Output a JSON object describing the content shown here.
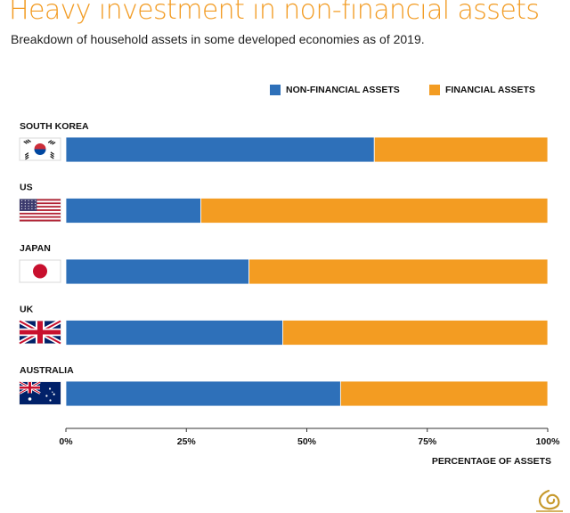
{
  "header": {
    "title": "Heavy investment in non-financial assets",
    "subtitle": "Breakdown of household assets in some developed economies as of 2019."
  },
  "colors": {
    "non_financial": "#2e70b9",
    "financial": "#f39c22"
  },
  "chart_data": {
    "type": "bar",
    "orientation": "horizontal",
    "stacked": true,
    "categories": [
      "SOUTH KOREA",
      "US",
      "JAPAN",
      "UK",
      "AUSTRALIA"
    ],
    "flags": [
      "south-korea-flag",
      "us-flag",
      "japan-flag",
      "uk-flag",
      "australia-flag"
    ],
    "series": [
      {
        "name": "NON-FINANCIAL ASSETS",
        "values": [
          64,
          28,
          38,
          45,
          57
        ]
      },
      {
        "name": "FINANCIAL ASSETS",
        "values": [
          36,
          72,
          62,
          55,
          43
        ]
      }
    ],
    "xlim": [
      0,
      100
    ],
    "xticks": [
      "0%",
      "25%",
      "50%",
      "75%",
      "100%"
    ],
    "xlabel": "PERCENTAGE OF ASSETS",
    "legend_position": "top-right",
    "grid": false
  }
}
